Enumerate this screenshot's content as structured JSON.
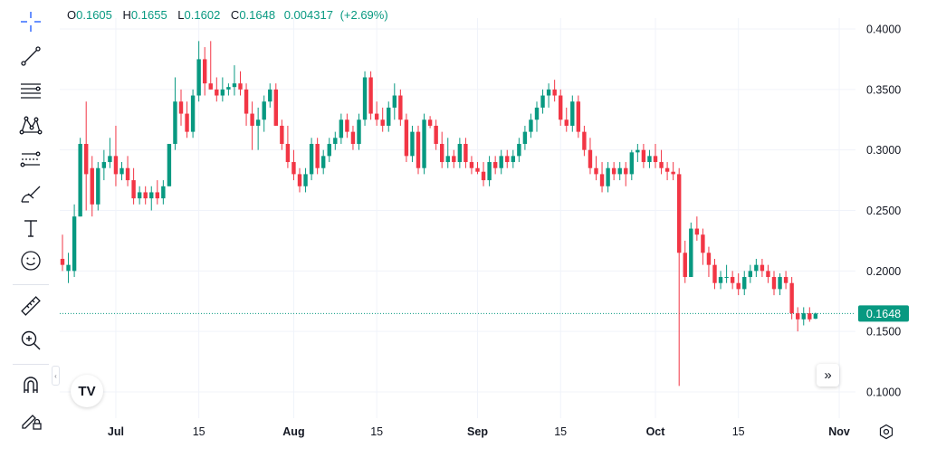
{
  "ohlc": {
    "open_label": "O",
    "open": "0.1605",
    "high_label": "H",
    "high": "0.1655",
    "low_label": "L",
    "low": "0.1602",
    "close_label": "C",
    "close": "0.1648",
    "change": "0.004317",
    "change_pct": "(+2.69%)"
  },
  "colors": {
    "up": "#089981",
    "down": "#f23645",
    "grid": "#f0f3fa",
    "text": "#131722",
    "price_line": "#089981"
  },
  "toolbar": {
    "items": [
      {
        "name": "crosshair-icon"
      },
      {
        "name": "trend-line-icon"
      },
      {
        "name": "horizontal-lines-icon"
      },
      {
        "name": "pattern-icon"
      },
      {
        "name": "forecast-icon"
      },
      {
        "name": "brush-icon"
      },
      {
        "name": "text-tool-icon"
      },
      {
        "name": "emoji-icon"
      },
      {
        "name": "ruler-icon"
      },
      {
        "name": "zoom-icon"
      },
      {
        "name": "magnet-icon"
      },
      {
        "name": "lock-drawings-icon"
      }
    ]
  },
  "logo_text": "TV",
  "chart_data": {
    "type": "candlestick",
    "title": "",
    "ylim": [
      0.08,
      0.41
    ],
    "y_ticks": [
      "0.4000",
      "0.3500",
      "0.3000",
      "0.2500",
      "0.2000",
      "0.1500",
      "0.1000"
    ],
    "y_tick_values": [
      0.4,
      0.35,
      0.3,
      0.25,
      0.2,
      0.15,
      0.1
    ],
    "x_ticks": [
      {
        "label": "Jul",
        "index": 9
      },
      {
        "label": "15",
        "index": 23
      },
      {
        "label": "Aug",
        "index": 39
      },
      {
        "label": "15",
        "index": 53
      },
      {
        "label": "Sep",
        "index": 70
      },
      {
        "label": "15",
        "index": 84
      },
      {
        "label": "Oct",
        "index": 100
      },
      {
        "label": "15",
        "index": 114
      },
      {
        "label": "Nov",
        "index": 131
      }
    ],
    "last_price": 0.1648,
    "last_price_label": "0.1648",
    "candles": [
      [
        0.21,
        0.23,
        0.2,
        0.205
      ],
      [
        0.2,
        0.215,
        0.19,
        0.205
      ],
      [
        0.2,
        0.255,
        0.195,
        0.245
      ],
      [
        0.245,
        0.31,
        0.245,
        0.305
      ],
      [
        0.305,
        0.34,
        0.25,
        0.28
      ],
      [
        0.285,
        0.295,
        0.245,
        0.255
      ],
      [
        0.255,
        0.29,
        0.25,
        0.285
      ],
      [
        0.285,
        0.3,
        0.275,
        0.29
      ],
      [
        0.29,
        0.31,
        0.285,
        0.295
      ],
      [
        0.295,
        0.32,
        0.27,
        0.28
      ],
      [
        0.28,
        0.29,
        0.275,
        0.285
      ],
      [
        0.285,
        0.295,
        0.27,
        0.275
      ],
      [
        0.275,
        0.285,
        0.255,
        0.26
      ],
      [
        0.26,
        0.27,
        0.255,
        0.265
      ],
      [
        0.265,
        0.27,
        0.255,
        0.26
      ],
      [
        0.26,
        0.27,
        0.25,
        0.265
      ],
      [
        0.265,
        0.275,
        0.255,
        0.26
      ],
      [
        0.26,
        0.275,
        0.255,
        0.27
      ],
      [
        0.27,
        0.305,
        0.27,
        0.305
      ],
      [
        0.305,
        0.36,
        0.3,
        0.34
      ],
      [
        0.34,
        0.35,
        0.32,
        0.33
      ],
      [
        0.33,
        0.34,
        0.31,
        0.315
      ],
      [
        0.315,
        0.35,
        0.31,
        0.345
      ],
      [
        0.345,
        0.39,
        0.34,
        0.375
      ],
      [
        0.375,
        0.385,
        0.345,
        0.355
      ],
      [
        0.355,
        0.39,
        0.35,
        0.35
      ],
      [
        0.35,
        0.36,
        0.34,
        0.345
      ],
      [
        0.345,
        0.36,
        0.34,
        0.35
      ],
      [
        0.35,
        0.355,
        0.345,
        0.352
      ],
      [
        0.352,
        0.37,
        0.345,
        0.355
      ],
      [
        0.355,
        0.365,
        0.345,
        0.35
      ],
      [
        0.35,
        0.355,
        0.32,
        0.33
      ],
      [
        0.33,
        0.34,
        0.3,
        0.32
      ],
      [
        0.32,
        0.335,
        0.3,
        0.325
      ],
      [
        0.325,
        0.345,
        0.315,
        0.34
      ],
      [
        0.34,
        0.355,
        0.335,
        0.35
      ],
      [
        0.35,
        0.355,
        0.32,
        0.32
      ],
      [
        0.32,
        0.325,
        0.3,
        0.305
      ],
      [
        0.305,
        0.32,
        0.285,
        0.29
      ],
      [
        0.29,
        0.3,
        0.275,
        0.28
      ],
      [
        0.28,
        0.285,
        0.265,
        0.27
      ],
      [
        0.27,
        0.285,
        0.265,
        0.28
      ],
      [
        0.28,
        0.31,
        0.275,
        0.305
      ],
      [
        0.305,
        0.31,
        0.28,
        0.285
      ],
      [
        0.285,
        0.3,
        0.28,
        0.295
      ],
      [
        0.295,
        0.31,
        0.29,
        0.305
      ],
      [
        0.305,
        0.315,
        0.3,
        0.31
      ],
      [
        0.31,
        0.33,
        0.305,
        0.325
      ],
      [
        0.325,
        0.33,
        0.31,
        0.315
      ],
      [
        0.315,
        0.32,
        0.3,
        0.305
      ],
      [
        0.305,
        0.33,
        0.3,
        0.325
      ],
      [
        0.325,
        0.365,
        0.32,
        0.36
      ],
      [
        0.36,
        0.365,
        0.325,
        0.33
      ],
      [
        0.33,
        0.34,
        0.32,
        0.325
      ],
      [
        0.325,
        0.335,
        0.315,
        0.32
      ],
      [
        0.32,
        0.34,
        0.315,
        0.335
      ],
      [
        0.335,
        0.355,
        0.325,
        0.345
      ],
      [
        0.345,
        0.35,
        0.32,
        0.325
      ],
      [
        0.325,
        0.33,
        0.29,
        0.295
      ],
      [
        0.295,
        0.32,
        0.29,
        0.315
      ],
      [
        0.315,
        0.32,
        0.28,
        0.285
      ],
      [
        0.285,
        0.33,
        0.28,
        0.325
      ],
      [
        0.325,
        0.328,
        0.318,
        0.32
      ],
      [
        0.32,
        0.325,
        0.3,
        0.305
      ],
      [
        0.305,
        0.315,
        0.285,
        0.29
      ],
      [
        0.29,
        0.31,
        0.285,
        0.295
      ],
      [
        0.295,
        0.3,
        0.285,
        0.29
      ],
      [
        0.29,
        0.31,
        0.285,
        0.305
      ],
      [
        0.305,
        0.31,
        0.285,
        0.29
      ],
      [
        0.29,
        0.295,
        0.28,
        0.285
      ],
      [
        0.285,
        0.29,
        0.28,
        0.282
      ],
      [
        0.282,
        0.29,
        0.27,
        0.275
      ],
      [
        0.275,
        0.295,
        0.27,
        0.29
      ],
      [
        0.29,
        0.295,
        0.28,
        0.285
      ],
      [
        0.285,
        0.3,
        0.28,
        0.295
      ],
      [
        0.295,
        0.3,
        0.285,
        0.29
      ],
      [
        0.29,
        0.3,
        0.285,
        0.295
      ],
      [
        0.295,
        0.31,
        0.29,
        0.305
      ],
      [
        0.305,
        0.32,
        0.3,
        0.315
      ],
      [
        0.315,
        0.33,
        0.31,
        0.325
      ],
      [
        0.325,
        0.34,
        0.315,
        0.335
      ],
      [
        0.335,
        0.35,
        0.33,
        0.345
      ],
      [
        0.345,
        0.355,
        0.335,
        0.35
      ],
      [
        0.35,
        0.358,
        0.34,
        0.345
      ],
      [
        0.345,
        0.35,
        0.32,
        0.325
      ],
      [
        0.325,
        0.335,
        0.315,
        0.32
      ],
      [
        0.32,
        0.345,
        0.315,
        0.34
      ],
      [
        0.34,
        0.345,
        0.31,
        0.315
      ],
      [
        0.315,
        0.32,
        0.295,
        0.3
      ],
      [
        0.3,
        0.31,
        0.28,
        0.285
      ],
      [
        0.285,
        0.295,
        0.275,
        0.28
      ],
      [
        0.28,
        0.29,
        0.265,
        0.27
      ],
      [
        0.27,
        0.29,
        0.265,
        0.285
      ],
      [
        0.285,
        0.29,
        0.275,
        0.28
      ],
      [
        0.28,
        0.29,
        0.275,
        0.285
      ],
      [
        0.285,
        0.29,
        0.27,
        0.28
      ],
      [
        0.28,
        0.3,
        0.275,
        0.298
      ],
      [
        0.298,
        0.305,
        0.29,
        0.3
      ],
      [
        0.3,
        0.305,
        0.285,
        0.29
      ],
      [
        0.29,
        0.3,
        0.285,
        0.295
      ],
      [
        0.295,
        0.305,
        0.285,
        0.29
      ],
      [
        0.29,
        0.3,
        0.28,
        0.285
      ],
      [
        0.285,
        0.29,
        0.275,
        0.282
      ],
      [
        0.282,
        0.29,
        0.275,
        0.28
      ],
      [
        0.28,
        0.285,
        0.105,
        0.215
      ],
      [
        0.215,
        0.225,
        0.19,
        0.195
      ],
      [
        0.195,
        0.24,
        0.195,
        0.235
      ],
      [
        0.235,
        0.245,
        0.225,
        0.23
      ],
      [
        0.23,
        0.235,
        0.205,
        0.215
      ],
      [
        0.215,
        0.22,
        0.195,
        0.205
      ],
      [
        0.205,
        0.21,
        0.185,
        0.19
      ],
      [
        0.19,
        0.2,
        0.185,
        0.195
      ],
      [
        0.195,
        0.205,
        0.19,
        0.195
      ],
      [
        0.195,
        0.2,
        0.185,
        0.19
      ],
      [
        0.19,
        0.198,
        0.18,
        0.185
      ],
      [
        0.185,
        0.2,
        0.18,
        0.195
      ],
      [
        0.195,
        0.205,
        0.19,
        0.2
      ],
      [
        0.2,
        0.21,
        0.195,
        0.205
      ],
      [
        0.205,
        0.21,
        0.195,
        0.2
      ],
      [
        0.2,
        0.205,
        0.19,
        0.195
      ],
      [
        0.195,
        0.2,
        0.18,
        0.185
      ],
      [
        0.185,
        0.198,
        0.18,
        0.195
      ],
      [
        0.195,
        0.2,
        0.185,
        0.19
      ],
      [
        0.19,
        0.195,
        0.16,
        0.165
      ],
      [
        0.165,
        0.17,
        0.15,
        0.16
      ],
      [
        0.16,
        0.17,
        0.155,
        0.165
      ],
      [
        0.165,
        0.17,
        0.158,
        0.16
      ],
      [
        0.1605,
        0.1655,
        0.1602,
        0.1648
      ]
    ]
  }
}
